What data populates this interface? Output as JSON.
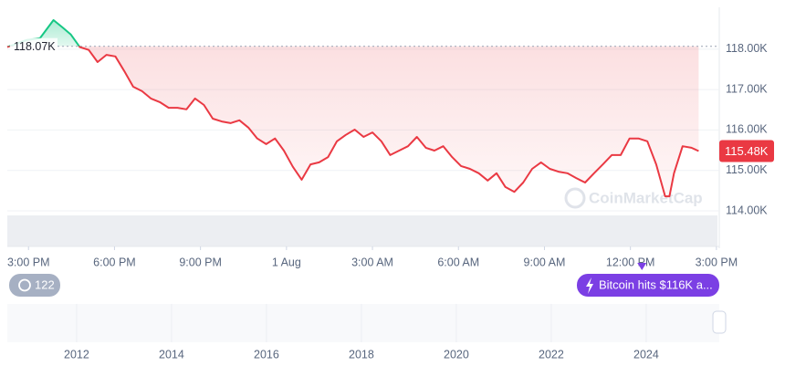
{
  "chart_data": {
    "type": "line",
    "x": [
      -0.74,
      -0.06,
      0.4,
      0.87,
      1.18,
      1.48,
      1.79,
      2.1,
      2.41,
      2.72,
      3.03,
      3.34,
      3.65,
      3.96,
      4.27,
      4.58,
      4.89,
      5.2,
      5.51,
      5.81,
      6.12,
      6.43,
      6.74,
      7.05,
      7.36,
      7.67,
      7.98,
      8.29,
      8.6,
      8.91,
      9.22,
      9.53,
      9.84,
      10.14,
      10.45,
      10.76,
      11.07,
      11.38,
      11.69,
      12.0,
      12.31,
      12.62,
      12.93,
      13.24,
      13.55,
      13.86,
      14.16,
      14.47,
      14.78,
      15.09,
      15.4,
      15.71,
      16.02,
      16.33,
      16.64,
      16.95,
      17.26,
      17.57,
      17.88,
      18.19,
      18.49,
      18.8,
      19.11,
      19.42,
      19.73,
      20.04,
      20.35,
      20.66,
      20.97,
      21.28,
      21.59,
      21.9,
      22.21,
      22.36,
      22.52,
      22.82,
      23.13,
      23.38
    ],
    "values": [
      118.05,
      118.23,
      118.27,
      118.72,
      118.54,
      118.36,
      118.05,
      117.98,
      117.68,
      117.86,
      117.82,
      117.46,
      117.07,
      116.96,
      116.78,
      116.69,
      116.55,
      116.55,
      116.51,
      116.78,
      116.62,
      116.28,
      116.21,
      116.17,
      116.24,
      116.06,
      115.79,
      115.65,
      115.79,
      115.49,
      115.09,
      114.77,
      115.15,
      115.2,
      115.33,
      115.72,
      115.88,
      116.01,
      115.83,
      115.94,
      115.72,
      115.38,
      115.49,
      115.6,
      115.83,
      115.56,
      115.49,
      115.6,
      115.33,
      115.11,
      115.04,
      114.93,
      114.75,
      114.93,
      114.59,
      114.47,
      114.7,
      115.04,
      115.2,
      115.04,
      114.97,
      114.93,
      114.81,
      114.7,
      114.93,
      115.15,
      115.38,
      115.38,
      115.79,
      115.79,
      115.72,
      115.15,
      114.36,
      114.36,
      114.93,
      115.6,
      115.56,
      115.48
    ],
    "up_color": "#16c784",
    "down_color": "#ea3943",
    "xlim": [
      -0.74,
      24.1
    ],
    "xticks": [
      {
        "value": 0,
        "label": "3:00 PM"
      },
      {
        "value": 3,
        "label": "6:00 PM"
      },
      {
        "value": 6,
        "label": "9:00 PM"
      },
      {
        "value": 9,
        "label": "1 Aug"
      },
      {
        "value": 12,
        "label": "3:00 AM"
      },
      {
        "value": 15,
        "label": "6:00 AM"
      },
      {
        "value": 18,
        "label": "9:00 AM"
      },
      {
        "value": 21,
        "label": "12:00 PM"
      },
      {
        "value": 24,
        "label": "3:00 PM"
      }
    ],
    "ylim": [
      113.12,
      118.99
    ],
    "yticks": [
      {
        "value": 114,
        "label": "114.00K"
      },
      {
        "value": 115,
        "label": "115.00K"
      },
      {
        "value": 116,
        "label": "116.00K"
      },
      {
        "value": 117,
        "label": "117.00K"
      },
      {
        "value": 118,
        "label": "118.00K"
      }
    ],
    "grid": true,
    "reference_line": {
      "value": 118.07,
      "label": "118.07K"
    },
    "current_price": {
      "value": 115.48,
      "label": "115.48K"
    },
    "watermark": "CoinMarketCap",
    "badge": "122",
    "event": {
      "x": 21.4,
      "label": "Bitcoin hits $116K a..."
    },
    "navigator": {
      "xlim": [
        2010.54,
        2025.54
      ],
      "xticks": [
        2012,
        2014,
        2016,
        2018,
        2020,
        2022,
        2024
      ]
    }
  }
}
